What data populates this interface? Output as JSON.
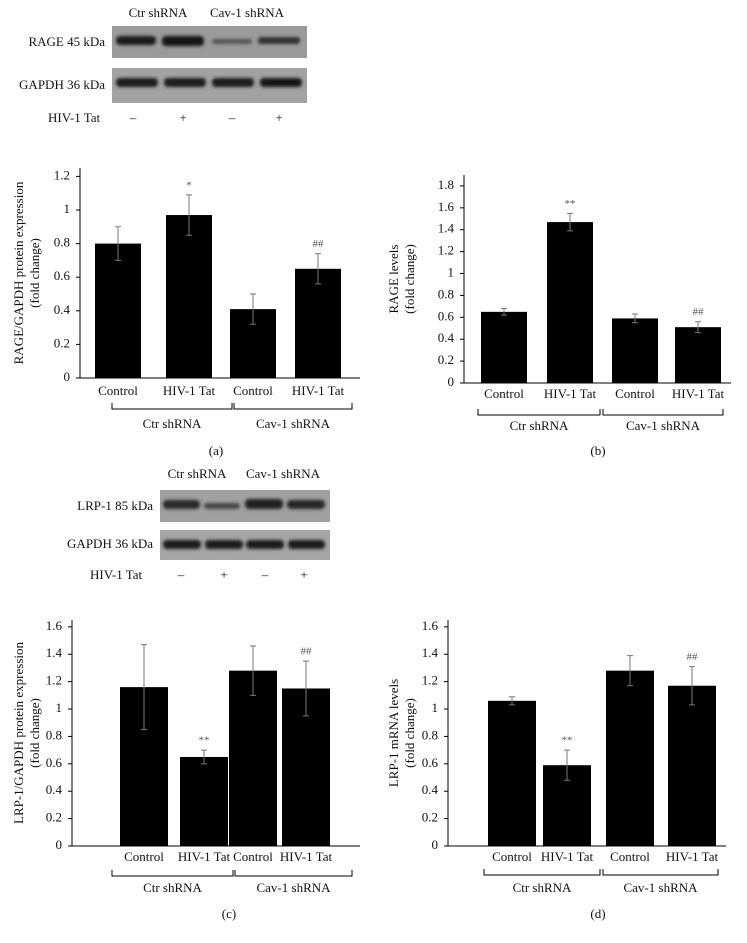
{
  "blots": [
    {
      "columns": [
        "Ctr shRNA",
        "Cav-1 shRNA"
      ],
      "rows": [
        "RAGE 45 kDa",
        "GAPDH 36 kDa"
      ],
      "treatment": "HIV-1 Tat",
      "signs": [
        "–",
        "+",
        "–",
        "+"
      ]
    },
    {
      "columns": [
        "Ctr shRNA",
        "Cav-1 shRNA"
      ],
      "rows": [
        "LRP-1 85 kDa",
        "GAPDH 36 kDa"
      ],
      "treatment": "HIV-1 Tat",
      "signs": [
        "–",
        "+",
        "–",
        "+"
      ]
    }
  ],
  "chart_data": [
    {
      "type": "bar",
      "panel": "(a)",
      "y_label": [
        "RAGE/GAPDH protein expression",
        "(fold change)"
      ],
      "categories": [
        "Control",
        "HIV-1 Tat",
        "Control",
        "HIV-1 Tat"
      ],
      "groups": [
        "Ctr shRNA",
        "Cav-1 shRNA"
      ],
      "values": [
        0.8,
        0.97,
        0.41,
        0.65
      ],
      "errors": [
        0.1,
        0.12,
        0.09,
        0.09
      ],
      "value_annotations": [
        null,
        "*",
        null,
        "##"
      ],
      "color": "#000000",
      "ylim": [
        0,
        1.25
      ],
      "yticks": [
        0,
        0.2,
        0.4,
        0.6,
        0.8,
        1,
        1.2
      ]
    },
    {
      "type": "bar",
      "panel": "(b)",
      "y_label": [
        "RAGE levels",
        "(fold change)"
      ],
      "categories": [
        "Control",
        "HIV-1 Tat",
        "Control",
        "HIV-1 Tat"
      ],
      "groups": [
        "Ctr shRNA",
        "Cav-1 shRNA"
      ],
      "values": [
        0.65,
        1.47,
        0.59,
        0.51
      ],
      "errors": [
        0.03,
        0.08,
        0.04,
        0.05
      ],
      "value_annotations": [
        null,
        "**",
        null,
        "##"
      ],
      "color": "#000000",
      "ylim": [
        0,
        1.9
      ],
      "yticks": [
        0,
        0.2,
        0.4,
        0.6,
        0.8,
        1,
        1.2,
        1.4,
        1.6,
        1.8
      ]
    },
    {
      "type": "bar",
      "panel": "(c)",
      "y_label": [
        "LRP-1/GAPDH protein expression",
        "(fold change)"
      ],
      "categories": [
        "Control",
        "HIV-1 Tat",
        "Control",
        "HIV-1 Tat"
      ],
      "groups": [
        "Ctr shRNA",
        "Cav-1 shRNA"
      ],
      "values": [
        1.16,
        0.65,
        1.28,
        1.15
      ],
      "errors": [
        0.31,
        0.05,
        0.18,
        0.2
      ],
      "value_annotations": [
        null,
        "**",
        null,
        "##"
      ],
      "color": "#000000",
      "ylim": [
        0,
        1.65
      ],
      "yticks": [
        0,
        0.2,
        0.4,
        0.6,
        0.8,
        1,
        1.2,
        1.4,
        1.6
      ]
    },
    {
      "type": "bar",
      "panel": "(d)",
      "y_label": [
        "LRP-1 mRNA levels",
        "(fold change)"
      ],
      "categories": [
        "Control",
        "HIV-1 Tat",
        "Control",
        "HIV-1 Tat"
      ],
      "groups": [
        "Ctr shRNA",
        "Cav-1 shRNA"
      ],
      "values": [
        1.06,
        0.59,
        1.28,
        1.17
      ],
      "errors": [
        0.03,
        0.11,
        0.11,
        0.14
      ],
      "value_annotations": [
        null,
        "**",
        null,
        "##"
      ],
      "color": "#000000",
      "ylim": [
        0,
        1.65
      ],
      "yticks": [
        0,
        0.2,
        0.4,
        0.6,
        0.8,
        1,
        1.2,
        1.4,
        1.6
      ]
    }
  ]
}
